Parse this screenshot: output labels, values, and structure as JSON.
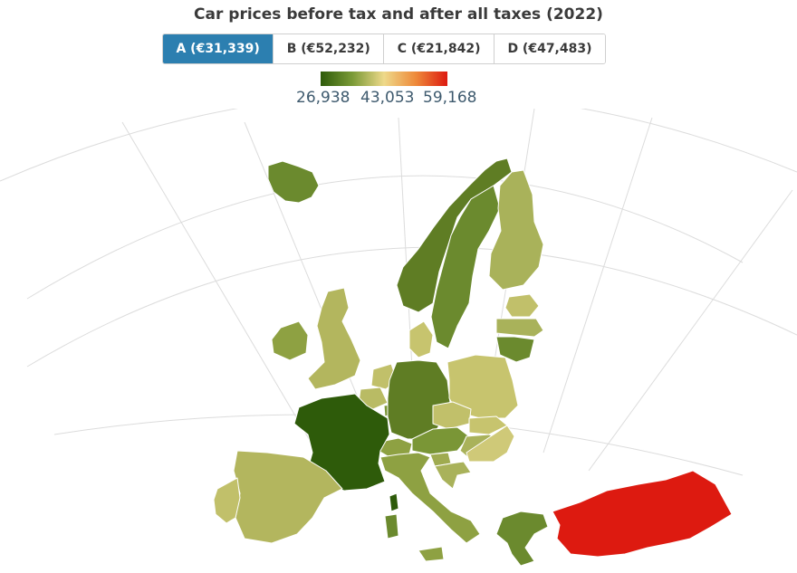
{
  "title": "Car prices before tax and after all taxes (2022)",
  "tabs": [
    {
      "label": "A (€31,339)",
      "active": true
    },
    {
      "label": "B (€52,232)",
      "active": false
    },
    {
      "label": "C (€21,842)",
      "active": false
    },
    {
      "label": "D (€47,483)",
      "active": false
    }
  ],
  "legend": {
    "min": "26,938",
    "mid": "43,053",
    "max": "59,168",
    "colors": [
      "#2e5b0a",
      "#eed98a",
      "#dd1a10"
    ]
  },
  "map_colors": {
    "iceland": "#6b8a2e",
    "norway": "#5f7d24",
    "sweden": "#6b8a2e",
    "finland": "#a9b25a",
    "estonia": "#c1c06a",
    "latvia": "#a9b25a",
    "lithuania": "#6b8a2e",
    "ireland": "#8ea142",
    "united_kingdom": "#b3b65e",
    "denmark": "#c7c46e",
    "netherlands": "#c1c06a",
    "belgium": "#b9bb64",
    "luxembourg": "#7a9636",
    "germany": "#5f7d24",
    "poland": "#c7c46e",
    "czechia": "#c1c06a",
    "slovakia": "#c7c46e",
    "austria": "#7a9636",
    "hungary": "#a9b25a",
    "switzerland": "#8ea142",
    "slovenia": "#9fab50",
    "croatia": "#a9b25a",
    "romania": "#cfc978",
    "france": "#2e5b0a",
    "spain": "#b3b65e",
    "portugal": "#c1c06a",
    "italy": "#8ea142",
    "corsica": "#2e5b0a",
    "sardinia": "#6b8a2e",
    "greece": "#6b8a2e",
    "turkey": "#dd1a10"
  }
}
